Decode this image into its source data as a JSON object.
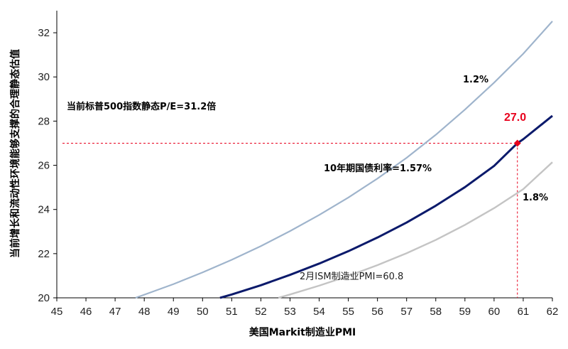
{
  "chart_data": {
    "type": "line",
    "xlabel": "美国Markit制造业PMI",
    "ylabel": "当前增长和流动性环境能够支撑的合理静态估值",
    "xlim": [
      45,
      62
    ],
    "ylim": [
      20,
      33
    ],
    "xticks": [
      "45",
      "46",
      "47",
      "48",
      "49",
      "50",
      "51",
      "52",
      "53",
      "54",
      "55",
      "56",
      "57",
      "58",
      "59",
      "60",
      "61",
      "62"
    ],
    "yticks": [
      "20",
      "22",
      "24",
      "26",
      "28",
      "30",
      "32"
    ],
    "grid": false,
    "series": [
      {
        "name": "1.2%",
        "color": "#9fb4cc",
        "x": [
          47.7,
          48,
          49,
          50,
          51,
          52,
          53,
          54,
          55,
          56,
          57,
          58,
          59,
          60,
          61,
          62
        ],
        "y": [
          20.0,
          20.14,
          20.62,
          21.15,
          21.72,
          22.34,
          23.02,
          23.75,
          24.54,
          25.4,
          26.34,
          27.38,
          28.52,
          29.74,
          31.05,
          32.52
        ]
      },
      {
        "name": "10年期国债利率=1.57%",
        "color": "#0b1a6b",
        "x": [
          50.6,
          51,
          52,
          53,
          54,
          55,
          56,
          57,
          58,
          59,
          60,
          60.8,
          61,
          62
        ],
        "y": [
          20.0,
          20.15,
          20.57,
          21.04,
          21.55,
          22.11,
          22.73,
          23.41,
          24.17,
          25.01,
          25.97,
          27.0,
          27.18,
          28.24
        ]
      },
      {
        "name": "1.8%",
        "color": "#c4c4c4",
        "x": [
          52.6,
          53,
          54,
          55,
          56,
          57,
          58,
          59,
          60,
          61,
          62
        ],
        "y": [
          20.0,
          20.15,
          20.55,
          20.99,
          21.48,
          22.02,
          22.62,
          23.3,
          24.06,
          24.92,
          26.14
        ]
      }
    ],
    "highlight_point": {
      "x": 60.8,
      "y": 27.0,
      "label": "27.0",
      "color": "#e8001c"
    },
    "annotations": {
      "pe_note": "当前标普500指数静态P/E=31.2倍",
      "ism_note": "2月ISM制造业PMI=60.8",
      "label_12": "1.2%",
      "label_157": "10年期国债利率=1.57%",
      "label_18": "1.8%"
    }
  }
}
